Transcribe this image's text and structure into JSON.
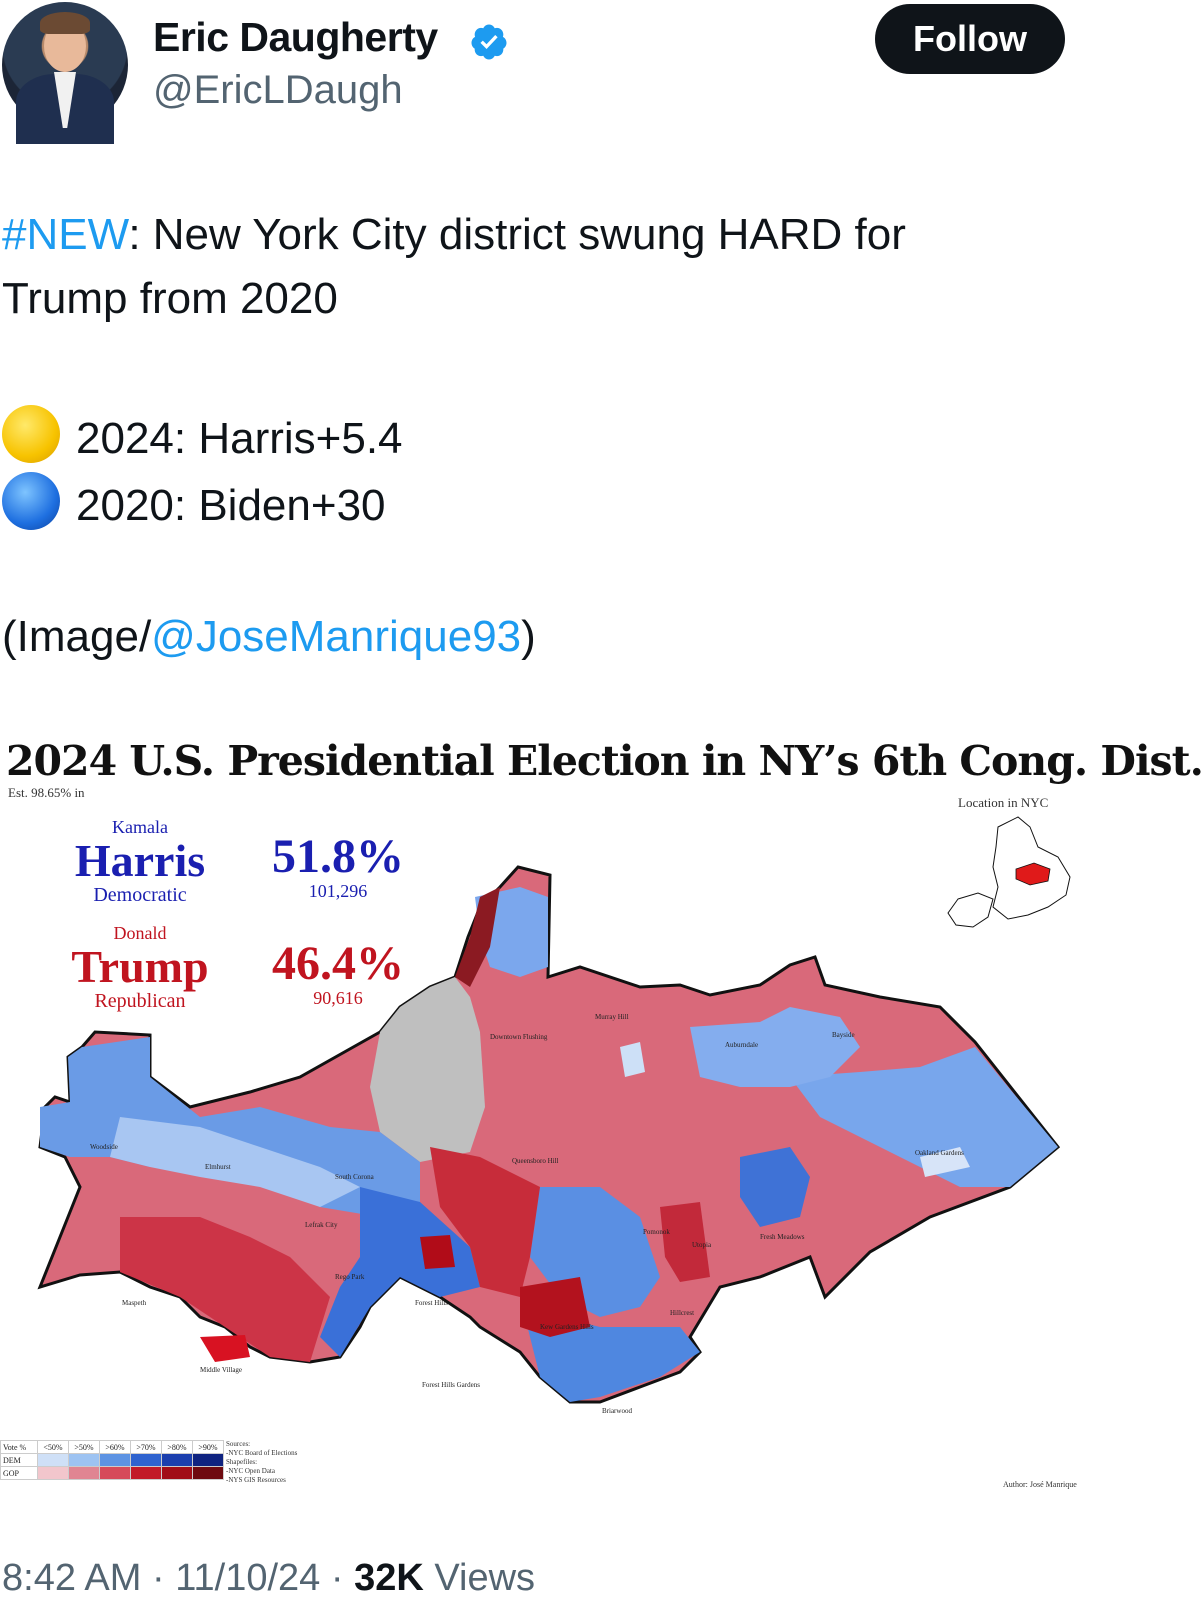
{
  "author": {
    "name": "Eric Daugherty",
    "handle": "@EricLDaugh",
    "follow_label": "Follow"
  },
  "tweet": {
    "hashtag": "#NEW",
    "line1_rest": ": New York City district swung HARD for",
    "line2": "Trump from 2020",
    "result_2024": "2024: Harris+5.4",
    "result_2020": "2020: Biden+30",
    "credit_open": "(Image/",
    "credit_handle": "@JoseManrique93",
    "credit_close": ")"
  },
  "map": {
    "title": "2024 U.S. Presidential Election in NY’s 6th Cong. Dist.",
    "subtitle": "Est. 98.65% in",
    "location_label": "Location in NYC",
    "dem": {
      "first": "Kamala",
      "last": "Harris",
      "party": "Democratic",
      "pct": "51.8%",
      "votes": "101,296"
    },
    "rep": {
      "first": "Donald",
      "last": "Trump",
      "party": "Republican",
      "pct": "46.4%",
      "votes": "90,616"
    },
    "neighborhoods": {
      "woodside": "Woodside",
      "elmhurst": "Elmhurst",
      "south_corona": "South Corona",
      "lefrak": "Lefrak City",
      "rego_park": "Rego Park",
      "forest_hills": "Forest Hills",
      "maspeth": "Maspeth",
      "middle_village": "Middle Village",
      "forest_hills_gardens": "Forest Hills Gardens",
      "downtown_flushing": "Downtown Flushing",
      "murray_hill": "Murray Hill",
      "auburndale": "Auburndale",
      "bayside": "Bayside",
      "queensboro_hill": "Queensboro Hill",
      "oakland_gardens": "Oakland Gardens",
      "pomonok": "Pomonok",
      "utopia": "Utopia",
      "fresh_meadows": "Fresh Meadows",
      "hillcrest": "Hillcrest",
      "kew_gardens_hills": "Kew Gardens Hills",
      "briarwood": "Briarwood"
    },
    "legend": {
      "header": "Vote %",
      "bins": [
        "<50%",
        ">50%",
        ">60%",
        ">70%",
        ">80%",
        ">90%"
      ],
      "dem_label": "DEM",
      "gop_label": "GOP",
      "dem_colors": [
        "#cfe0f7",
        "#9dc3f2",
        "#5d93e3",
        "#2f63cf",
        "#1b3fae",
        "#0f2380"
      ],
      "gop_colors": [
        "#f2c6cc",
        "#e08592",
        "#d64a5a",
        "#c21a28",
        "#a10d17",
        "#6e0a10"
      ]
    },
    "sources": "Sources:\n-NYC Board of Elections\nShapefiles:\n-NYC Open Data\n-NYS GIS Resources",
    "author_credit": "Author: José Manrique"
  },
  "meta": {
    "time": "8:42 AM",
    "date": "11/10/24",
    "views_count": "32K",
    "views_label": "Views"
  }
}
